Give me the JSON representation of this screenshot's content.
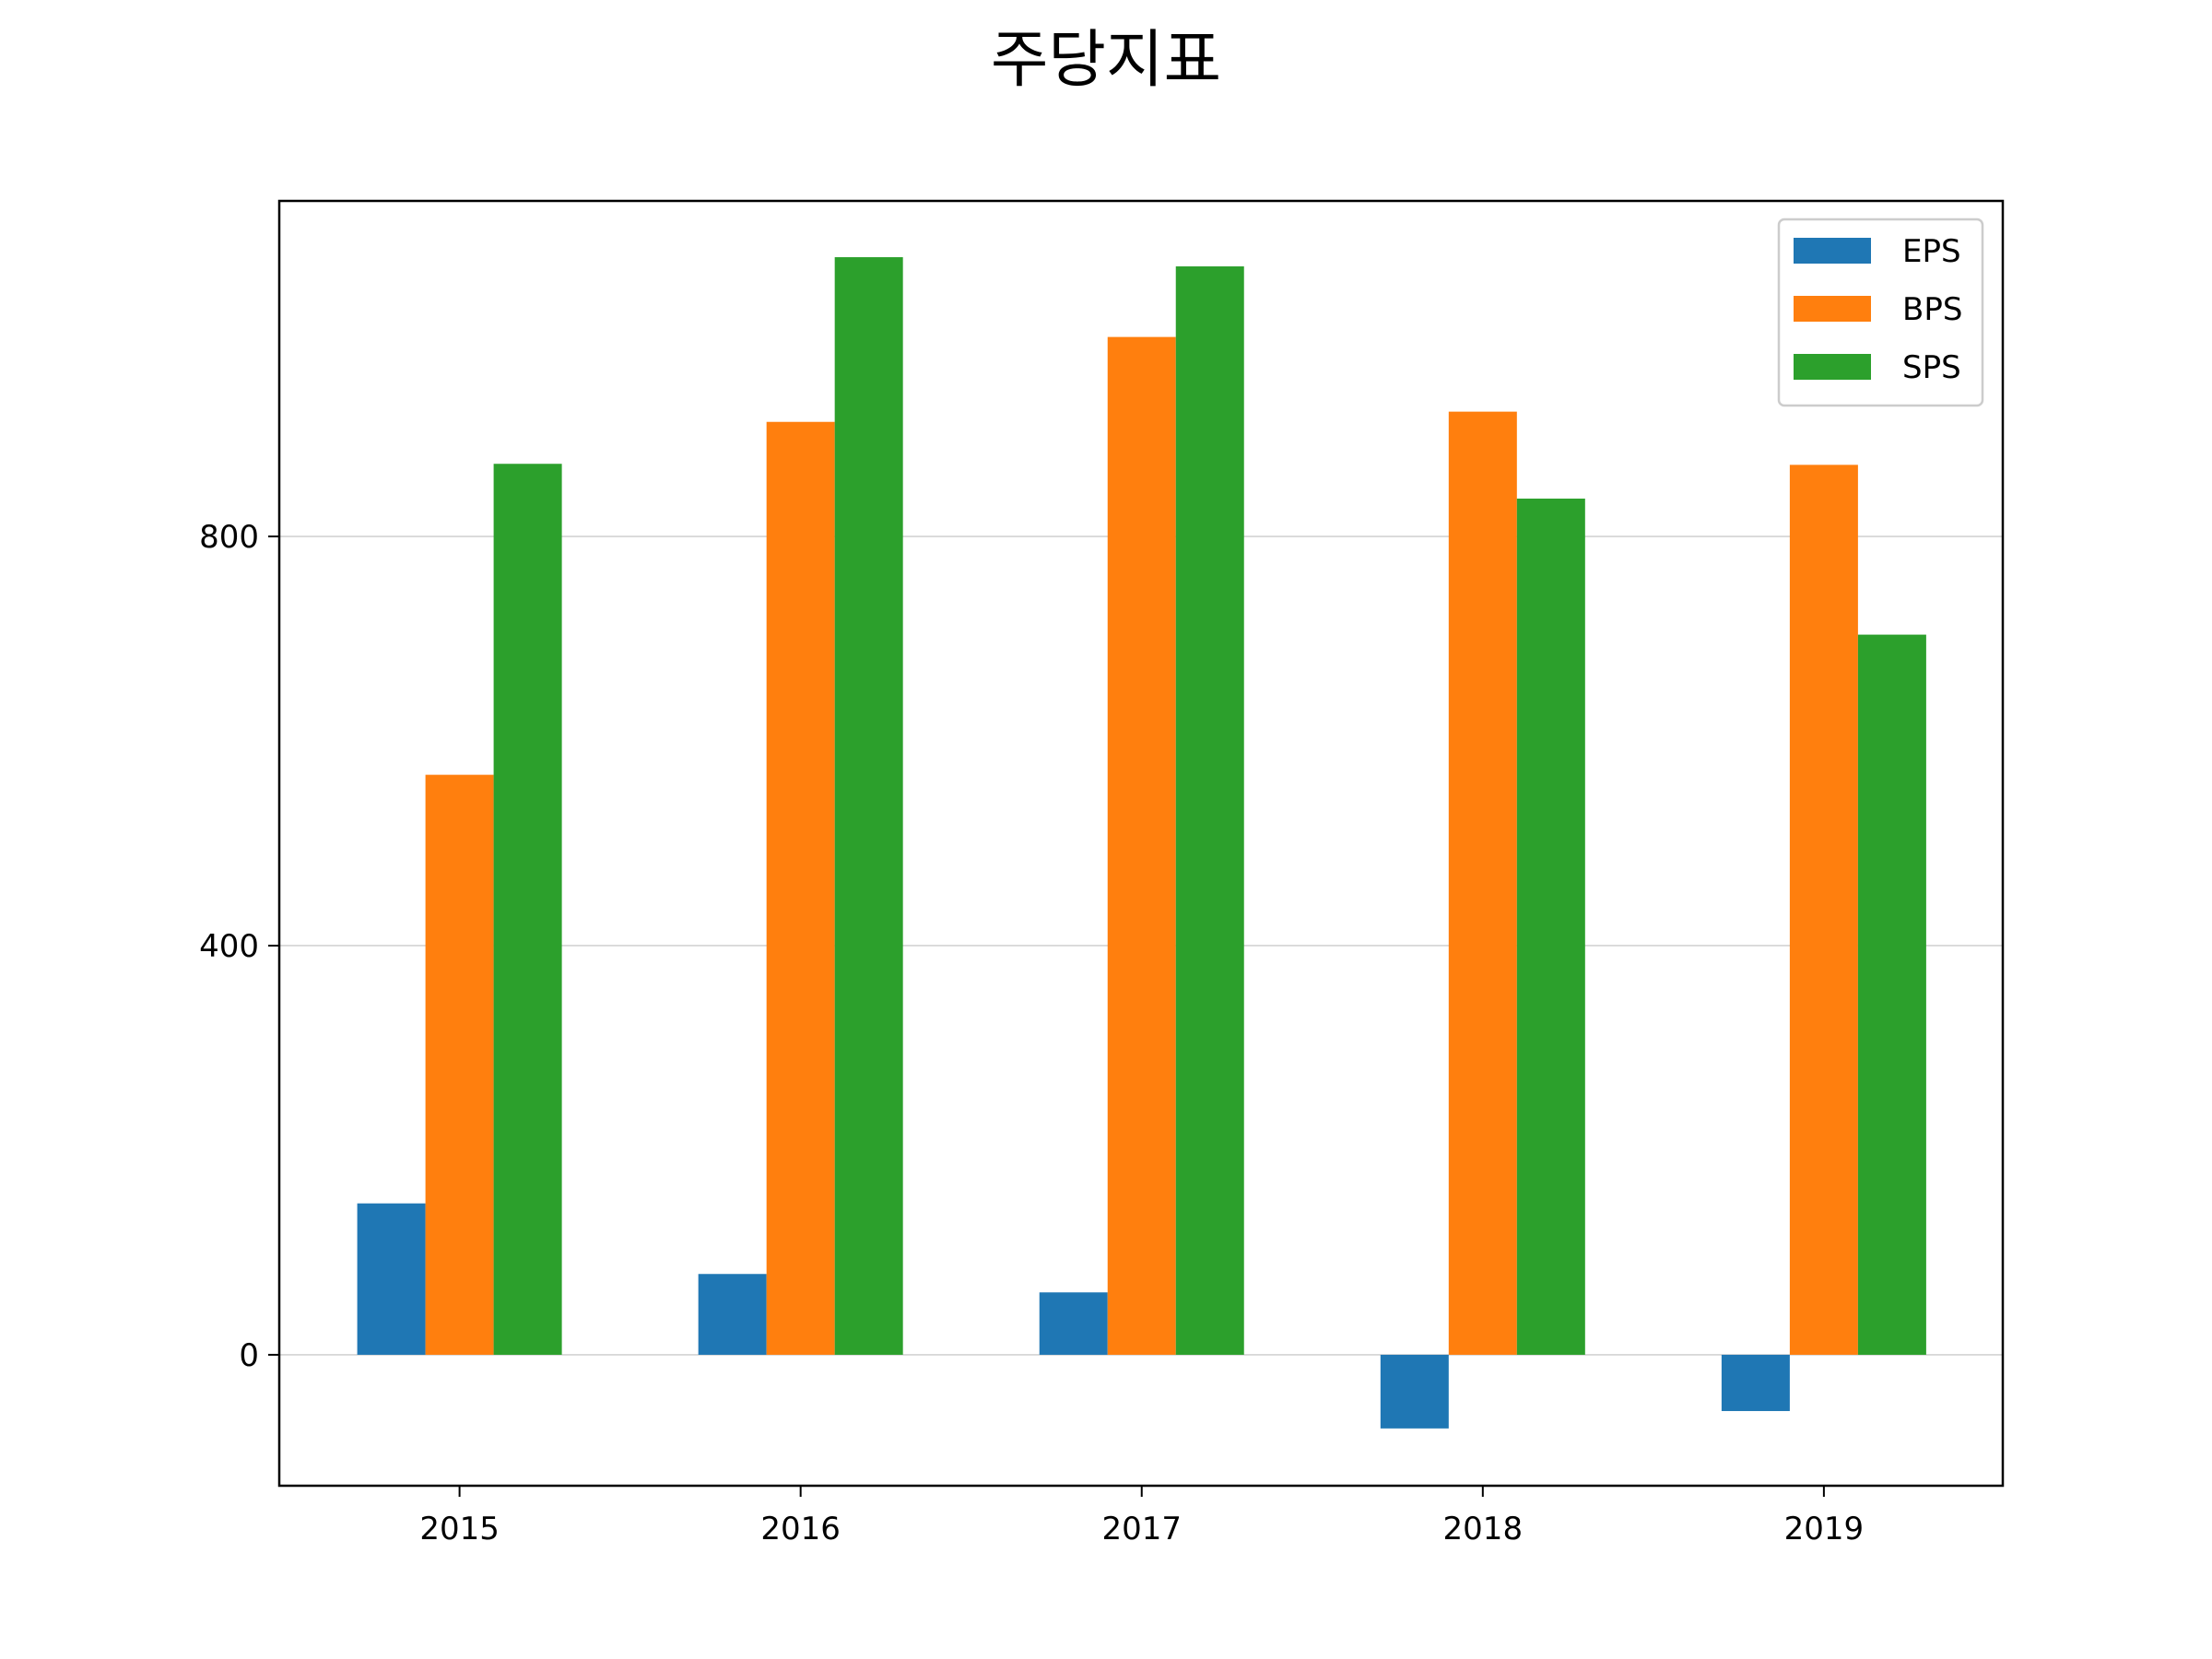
{
  "chart_data": {
    "type": "bar",
    "title": "주당지표",
    "xlabel": "",
    "ylabel": "",
    "categories": [
      "2015",
      "2016",
      "2017",
      "2018",
      "2019"
    ],
    "series": [
      {
        "name": "EPS",
        "color": "#1f77b4",
        "values": [
          148,
          79,
          61,
          -72,
          -55
        ]
      },
      {
        "name": "BPS",
        "color": "#ff7f0e",
        "values": [
          567,
          912,
          995,
          922,
          870
        ]
      },
      {
        "name": "SPS",
        "color": "#2ca02c",
        "values": [
          871,
          1073,
          1064,
          837,
          704
        ]
      }
    ],
    "ylim": [
      -128,
      1128
    ],
    "yticks": [
      "0",
      "400",
      "800"
    ],
    "grid": "horizontal",
    "legend_position": "top-right"
  }
}
